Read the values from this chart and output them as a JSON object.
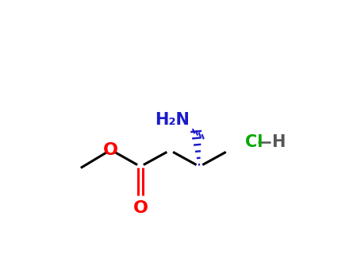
{
  "bg_color": "#ffffff",
  "bond_color": "#000000",
  "bond_lw": 2.2,
  "colors": {
    "O": "#ff0000",
    "N": "#1a1acc",
    "Cl": "#00aa00",
    "H_dark": "#555555",
    "C": "#000000"
  },
  "nh2_label": "H₂N",
  "cl_label": "Cl",
  "h_label": "H",
  "o_label": "O",
  "font_size": 15
}
